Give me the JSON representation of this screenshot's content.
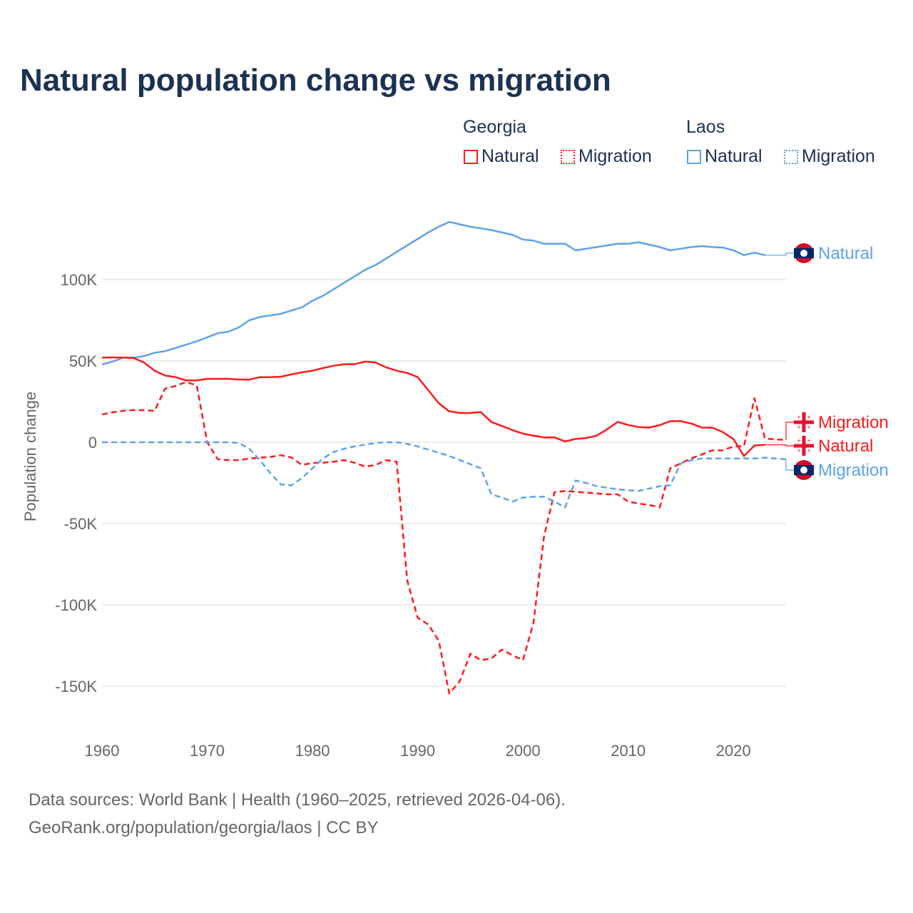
{
  "title": "Natural population change vs migration",
  "legend": {
    "groups": [
      {
        "name": "Georgia",
        "items": [
          "Natural",
          "Migration"
        ]
      },
      {
        "name": "Laos",
        "items": [
          "Natural",
          "Migration"
        ]
      }
    ]
  },
  "colors": {
    "georgia": "#ff1a1a",
    "laos": "#5ea3e8",
    "title": "#1b3252"
  },
  "footer": {
    "line1": "Data sources: World Bank | Health (1960–2025, retrieved 2026-04-06).",
    "line2": "GeoRank.org/population/georgia/laos | CC BY"
  },
  "chart_data": {
    "type": "line",
    "title": "Natural population change vs migration",
    "xlabel": "",
    "ylabel": "Population change",
    "xlim": [
      1960,
      2025
    ],
    "ylim": [
      -170000,
      140000
    ],
    "x_ticks": [
      "1960",
      "1970",
      "1980",
      "1990",
      "2000",
      "2010",
      "2020"
    ],
    "y_ticks": [
      {
        "v": 100000,
        "label": "100K"
      },
      {
        "v": 50000,
        "label": "50K"
      },
      {
        "v": 0,
        "label": "0"
      },
      {
        "v": -50000,
        "label": "-50K"
      },
      {
        "v": -100000,
        "label": "-100K"
      },
      {
        "v": -150000,
        "label": "-150K"
      }
    ],
    "grid": true,
    "legend_position": "top-right",
    "series": [
      {
        "name": "Laos Natural",
        "country": "laos",
        "style": "solid",
        "end_label": "Natural",
        "start": 1960,
        "values": [
          47.8,
          49.6,
          52,
          52,
          53,
          55,
          56,
          58,
          60,
          62,
          64.5,
          67,
          68,
          70.6,
          75,
          77,
          78,
          79,
          81,
          83,
          87,
          90,
          94,
          98,
          102,
          106,
          109,
          113,
          117,
          121,
          125,
          129,
          132.5,
          135.5,
          134,
          132.5,
          131.5,
          130.5,
          129,
          127.6,
          124.6,
          124,
          122,
          122,
          122,
          118,
          119,
          120,
          121,
          122,
          122,
          123,
          121.5,
          120,
          118,
          119,
          120,
          120.6,
          120,
          119.7,
          118,
          115,
          116.6,
          115
        ]
      },
      {
        "name": "Georgia Natural",
        "country": "georgia",
        "style": "solid",
        "end_label": "Natural",
        "start": 1960,
        "values": [
          52,
          52.2,
          52,
          51.8,
          49,
          44,
          41,
          40,
          38,
          38,
          39,
          39,
          39,
          38.6,
          38.5,
          40,
          40,
          40.3,
          41.7,
          43,
          44,
          45.6,
          47,
          48,
          48,
          49.6,
          49,
          46,
          44,
          42.6,
          40,
          32,
          24,
          19,
          18,
          18,
          18.5,
          12.4,
          10,
          7.5,
          5.3,
          4,
          3,
          3,
          0.5,
          2,
          2.6,
          4,
          8,
          12.5,
          10.6,
          9.3,
          9,
          10.5,
          13,
          13,
          11.5,
          9,
          9,
          6.2,
          2,
          -8.5,
          -2,
          -1.6
        ]
      },
      {
        "name": "Georgia Migration",
        "country": "georgia",
        "style": "dashed",
        "end_label": "Migration",
        "start": 1960,
        "values": [
          17,
          18.4,
          19.3,
          19.8,
          19.7,
          19.3,
          33,
          34.6,
          37,
          35,
          0,
          -10.5,
          -11,
          -11,
          -10,
          -9.5,
          -9,
          -8,
          -9.4,
          -14,
          -12.7,
          -12.6,
          -12,
          -11,
          -12.6,
          -15,
          -14,
          -11,
          -12,
          -85,
          -108,
          -112,
          -122,
          -154.5,
          -147,
          -130,
          -134,
          -133,
          -127.5,
          -131,
          -134,
          -111,
          -58,
          -30.7,
          -30,
          -30.5,
          -31,
          -31.5,
          -32,
          -32,
          -36.5,
          -37.7,
          -38.6,
          -40,
          -16,
          -13,
          -10,
          -7.5,
          -5,
          -5,
          -2.6,
          -2.4,
          27,
          2.2,
          1.8,
          1.3
        ]
      },
      {
        "name": "Laos Migration",
        "country": "laos",
        "style": "dashed",
        "end_label": "Migration",
        "start": 1960,
        "values": [
          0,
          0,
          0,
          0,
          0,
          0,
          0,
          0,
          0,
          0,
          0,
          0,
          0,
          -0.5,
          -4,
          -11,
          -19,
          -26,
          -26.5,
          -22,
          -16,
          -10,
          -6,
          -4,
          -2.6,
          -1.5,
          -0.5,
          0,
          0,
          -1,
          -2.6,
          -4.5,
          -6.5,
          -8.5,
          -11,
          -13.5,
          -16,
          -32,
          -34,
          -36.6,
          -34,
          -33.5,
          -33.5,
          -36.5,
          -40,
          -23.5,
          -25,
          -27,
          -28,
          -29,
          -29.5,
          -30,
          -28.5,
          -27,
          -26.5,
          -13,
          -11,
          -10,
          -10,
          -10,
          -10,
          -10,
          -10,
          -9.5,
          -10,
          -10.5
        ]
      }
    ],
    "value_unit": "thousands"
  }
}
